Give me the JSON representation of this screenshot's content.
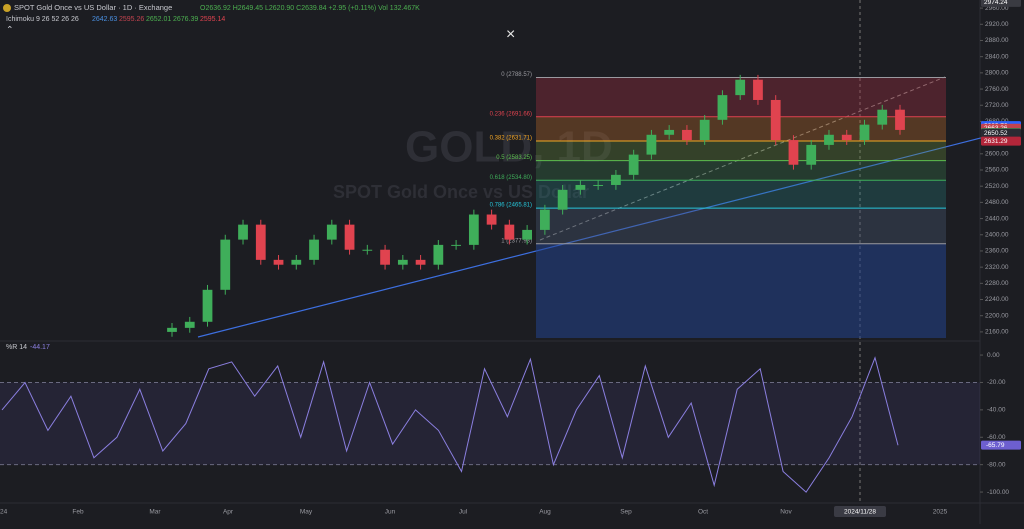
{
  "chart_data": {
    "type": "candlestick",
    "title": "SPOT Gold Once vs US Dollar · 1D · Exchange",
    "ohlc_legend": "O2636.92 H2649.45 L2620.90 C2639.84 +2.95 (+0.11%) Vol 132.467K",
    "indicator_legend": "Ichimoku 9 26 52 26 26",
    "indicator_values": [
      "2642.63",
      "2595.26",
      "2652.01",
      "2676.39",
      "2595.14"
    ],
    "watermark": "GOLD, 1D",
    "watermark_subtitle": "SPOT Gold Once vs US Dollar",
    "x_labels": [
      "24",
      "Feb",
      "Mar",
      "Apr",
      "May",
      "Jun",
      "Jul",
      "Aug",
      "Sep",
      "Oct",
      "Nov",
      "2024/11/28",
      "2025"
    ],
    "open": [
      2160,
      2170,
      2185,
      2264,
      2388,
      2425,
      2338,
      2326,
      2338,
      2388,
      2425,
      2363,
      2363,
      2326,
      2338,
      2326,
      2375,
      2375,
      2450,
      2425,
      2388,
      2412,
      2462,
      2511,
      2523,
      2523,
      2548,
      2598,
      2647,
      2659,
      2634,
      2684,
      2745,
      2783,
      2733,
      2634,
      2573,
      2622,
      2647,
      2634,
      2672,
      2709
    ],
    "high": [
      2182,
      2197,
      2276,
      2400,
      2437,
      2437,
      2350,
      2350,
      2400,
      2437,
      2437,
      2375,
      2375,
      2350,
      2350,
      2387,
      2387,
      2462,
      2462,
      2437,
      2424,
      2474,
      2523,
      2535,
      2535,
      2560,
      2610,
      2659,
      2671,
      2671,
      2696,
      2757,
      2795,
      2795,
      2745,
      2646,
      2634,
      2659,
      2659,
      2684,
      2721,
      2721
    ],
    "low": [
      2148,
      2158,
      2173,
      2252,
      2376,
      2326,
      2314,
      2314,
      2326,
      2376,
      2351,
      2351,
      2314,
      2314,
      2314,
      2314,
      2363,
      2363,
      2413,
      2376,
      2376,
      2400,
      2450,
      2499,
      2511,
      2511,
      2536,
      2586,
      2635,
      2622,
      2622,
      2672,
      2733,
      2721,
      2622,
      2561,
      2561,
      2610,
      2622,
      2622,
      2660,
      2647
    ],
    "close": [
      2170,
      2185,
      2264,
      2388,
      2425,
      2338,
      2326,
      2338,
      2388,
      2425,
      2363,
      2363,
      2326,
      2338,
      2326,
      2375,
      2375,
      2450,
      2425,
      2388,
      2412,
      2462,
      2511,
      2523,
      2523,
      2548,
      2598,
      2647,
      2659,
      2634,
      2684,
      2745,
      2783,
      2733,
      2634,
      2573,
      2622,
      2647,
      2634,
      2672,
      2709,
      2659
    ],
    "up_color": "#3fae5a",
    "down_color": "#e0434f",
    "ylim": [
      2140,
      2980
    ],
    "yticks": [
      {
        "value": 2160,
        "label": "2160.00"
      },
      {
        "value": 2200,
        "label": "2200.00"
      },
      {
        "value": 2240,
        "label": "2240.00"
      },
      {
        "value": 2280,
        "label": "2280.00"
      },
      {
        "value": 2320,
        "label": "2320.00"
      },
      {
        "value": 2360,
        "label": "2360.00"
      },
      {
        "value": 2400,
        "label": "2400.00"
      },
      {
        "value": 2440,
        "label": "2440.00"
      },
      {
        "value": 2480,
        "label": "2480.00"
      },
      {
        "value": 2520,
        "label": "2520.00"
      },
      {
        "value": 2560,
        "label": "2560.00"
      },
      {
        "value": 2600,
        "label": "2600.00"
      },
      {
        "value": 2640,
        "label": "2640.00"
      },
      {
        "value": 2680,
        "label": "2680.00"
      },
      {
        "value": 2720,
        "label": "2720.00"
      },
      {
        "value": 2760,
        "label": "2760.00"
      },
      {
        "value": 2800,
        "label": "2800.00"
      },
      {
        "value": 2840,
        "label": "2840.00"
      },
      {
        "value": 2880,
        "label": "2880.00"
      },
      {
        "value": 2920,
        "label": "2920.00"
      },
      {
        "value": 2960,
        "label": "2960.00"
      }
    ],
    "price_labels": [
      {
        "value": 2974.24,
        "color": "#3a3b42"
      },
      {
        "value": 2669.76,
        "color": "#2962ff"
      },
      {
        "value": 2663.26,
        "color": "#c2434f"
      },
      {
        "value": 2652.01,
        "color": "#5c5d66"
      },
      {
        "value": 2652.01,
        "color": "#2e8b4a"
      },
      {
        "value": 2650.52,
        "color": "#2a2b33"
      },
      {
        "value": 2631.29,
        "color": "#b3263a"
      }
    ],
    "fib_levels": [
      {
        "value": 2788.57,
        "label": "0 (2788.57)",
        "color": "#9a9aa0",
        "fill": "rgba(170,50,65,0.35)"
      },
      {
        "value": 2691.66,
        "label": "0.236 (2691.66)",
        "color": "#e0434f",
        "fill": "rgba(190,110,40,0.35)"
      },
      {
        "value": 2631.71,
        "label": "0.382 (2631.71)",
        "color": "#f5a623",
        "fill": "rgba(110,150,60,0.3)"
      },
      {
        "value": 2583.25,
        "label": "0.5 (2583.25)",
        "color": "#5cbf4f",
        "fill": "rgba(60,130,80,0.3)"
      },
      {
        "value": 2534.8,
        "label": "0.618 (2534.80)",
        "color": "#3fae5a",
        "fill": "rgba(40,130,130,0.3)"
      },
      {
        "value": 2465.81,
        "label": "0.786 (2465.81)",
        "color": "#26c6da",
        "fill": "rgba(70,85,110,0.4)"
      },
      {
        "value": 2377.93,
        "label": "1 (2377.93)",
        "color": "#9a9aa0",
        "fill": "rgba(35,65,140,0.55)"
      }
    ],
    "oscillator": {
      "label": "%R 14",
      "current_label": "-44.17",
      "color": "#8b7fe0",
      "values": [
        -40,
        -20,
        -55,
        -30,
        -75,
        -60,
        -25,
        -70,
        -50,
        -10,
        -5,
        -30,
        -8,
        -60,
        -5,
        -70,
        -20,
        -65,
        -40,
        -55,
        -85,
        -10,
        -45,
        -3,
        -80,
        -40,
        -15,
        -75,
        -8,
        -60,
        -35,
        -95,
        -25,
        -10,
        -85,
        -100,
        -75,
        -45,
        -2,
        -65.79
      ],
      "last_value_label": {
        "value": -65.79,
        "color": "#6d5fd0"
      },
      "bands": [
        -20,
        -80
      ],
      "ylim": [
        -105.8,
        8.8
      ],
      "yticks": [
        {
          "value": 0,
          "label": "0.00"
        },
        {
          "value": -20,
          "label": "-20.00"
        },
        {
          "value": -40,
          "label": "-40.00"
        },
        {
          "value": -60,
          "label": "-60.00"
        },
        {
          "value": -80,
          "label": "-80.00"
        },
        {
          "value": -100,
          "label": "-100.00"
        }
      ]
    }
  }
}
